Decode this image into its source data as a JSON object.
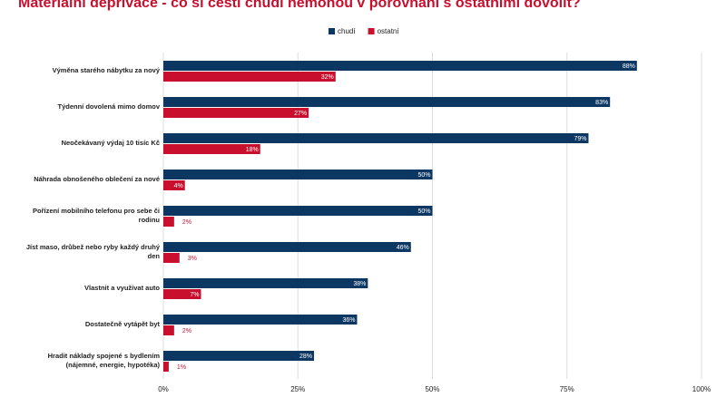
{
  "chart_data": {
    "type": "hbar",
    "title": "Materiální deprivace - co si čeští chudí nemohou v porovnání s ostatními dovolit?",
    "categories": [
      "Výměna starého nábytku za nový",
      "Týdenní dovolená mimo domov",
      "Neočekávaný výdaj 10 tisíc Kč",
      "Náhrada obnošeného oblečení za nové",
      "Pořízení mobilního telefonu pro sebe či rodinu",
      "Jíst maso, drůbež nebo ryby každý druhý den",
      "Vlastnit a využívat auto",
      "Dostatečně vytápět byt",
      "Hradit náklady spojené s bydlením (nájemné, energie, hypotéka)"
    ],
    "series": [
      {
        "name": "chudí",
        "color": "#0d3763",
        "values": [
          88,
          83,
          79,
          50,
          50,
          46,
          38,
          36,
          28
        ],
        "value_labels": [
          "88%",
          "83%",
          "79%",
          "50%",
          "50%",
          "46%",
          "38%",
          "36%",
          "28%"
        ]
      },
      {
        "name": "ostatní",
        "color": "#c8102e",
        "values": [
          32,
          27,
          18,
          4,
          2,
          3,
          7,
          2,
          1
        ],
        "value_labels": [
          "32%",
          "27%",
          "18%",
          "4%",
          "2%",
          "3%",
          "7%",
          "2%",
          "1%"
        ]
      }
    ],
    "xlim": [
      0,
      100
    ],
    "xticks": [
      {
        "value": 0,
        "label": "0%"
      },
      {
        "value": 25,
        "label": "25%"
      },
      {
        "value": 50,
        "label": "50%"
      },
      {
        "value": 75,
        "label": "75%"
      },
      {
        "value": 100,
        "label": "100%"
      }
    ],
    "grid": true,
    "legend": "top"
  }
}
